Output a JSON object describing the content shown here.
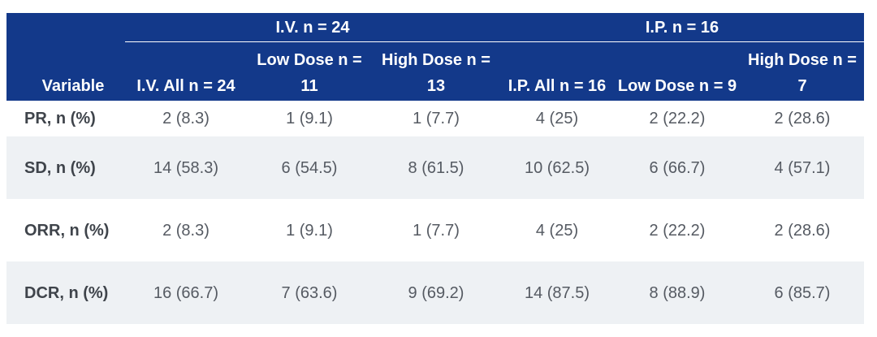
{
  "table": {
    "variable_header": "Variable",
    "groups": [
      {
        "label": "I.V. n = 24"
      },
      {
        "label": "I.P. n = 16"
      }
    ],
    "columns": [
      "I.V. All n = 24",
      "Low Dose n = 11",
      "High Dose n = 13",
      "I.P. All n = 16",
      "Low Dose n = 9",
      "High Dose n = 7"
    ],
    "rows": [
      {
        "label": "PR, n (%)",
        "values": [
          "2 (8.3)",
          "1 (9.1)",
          "1 (7.7)",
          "4 (25)",
          "2 (22.2)",
          "2 (28.6)"
        ]
      },
      {
        "label": "SD, n (%)",
        "values": [
          "14 (58.3)",
          "6 (54.5)",
          "8 (61.5)",
          "10 (62.5)",
          "6 (66.7)",
          "4 (57.1)"
        ]
      },
      {
        "label": "ORR, n (%)",
        "values": [
          "2 (8.3)",
          "1 (9.1)",
          "1 (7.7)",
          "4 (25)",
          "2 (22.2)",
          "2 (28.6)"
        ]
      },
      {
        "label": "DCR, n (%)",
        "values": [
          "16 (66.7)",
          "7 (63.6)",
          "9 (69.2)",
          "14 (87.5)",
          "8 (88.9)",
          "6 (85.7)"
        ]
      }
    ]
  },
  "colors": {
    "header_bg": "#13398a",
    "header_text": "#ffffff",
    "alt_row_bg": "#eef1f4",
    "body_text": "#555a62"
  }
}
